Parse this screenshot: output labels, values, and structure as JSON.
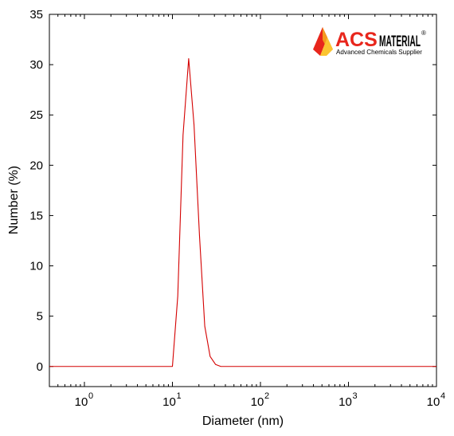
{
  "chart_data": {
    "type": "line",
    "xlabel": "Diameter (nm)",
    "ylabel": "Number (%)",
    "xscale": "log",
    "xlim": [
      0.4,
      10000
    ],
    "ylim": [
      -2,
      35
    ],
    "x_ticks": [
      {
        "value": 1,
        "base": "10",
        "exp": "0"
      },
      {
        "value": 10,
        "base": "10",
        "exp": "1"
      },
      {
        "value": 100,
        "base": "10",
        "exp": "2"
      },
      {
        "value": 1000,
        "base": "10",
        "exp": "3"
      },
      {
        "value": 10000,
        "base": "10",
        "exp": "4"
      }
    ],
    "y_ticks": [
      0,
      5,
      10,
      15,
      20,
      25,
      30,
      35
    ],
    "grid": false,
    "series": [
      {
        "color": "#d40000",
        "x": [
          0.4,
          10,
          11.5,
          13.2,
          15.3,
          17.6,
          20.3,
          23.3,
          26.8,
          30.9,
          35.5,
          40.9,
          10000
        ],
        "y": [
          0,
          0,
          7,
          23,
          30.6,
          24,
          13,
          4,
          1,
          0.2,
          0,
          0,
          0
        ]
      }
    ]
  },
  "logo": {
    "brand": "ACS",
    "brand2": "MATERIAL",
    "registered": "®",
    "tagline": "Advanced Chemicals Supplier",
    "colors": {
      "red": "#e8261c",
      "orange": "#f39a1e",
      "yellow": "#fbc430"
    }
  }
}
